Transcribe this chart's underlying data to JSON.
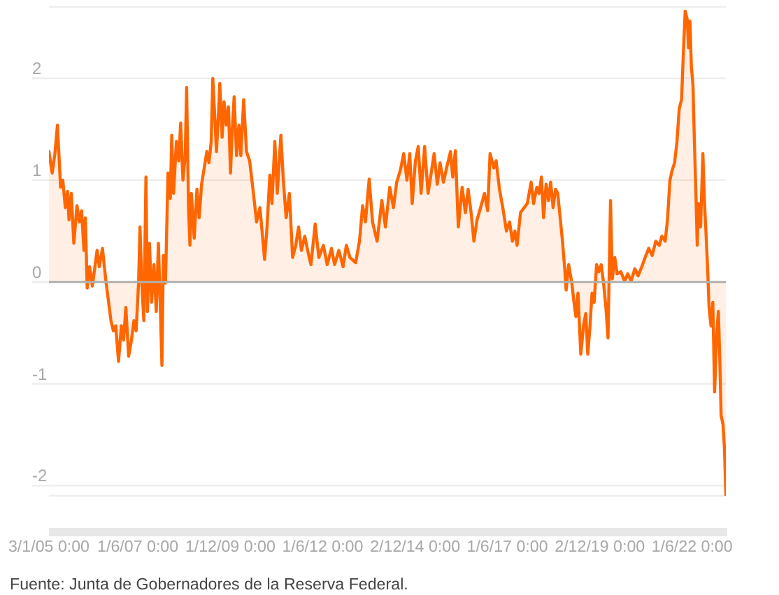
{
  "chart_data": {
    "type": "area",
    "color": "#ff6600",
    "x": [
      "2005-01-03",
      "2005-02-04",
      "2005-03-03",
      "2005-03-28",
      "2005-04-28",
      "2005-05-20",
      "2005-06-14",
      "2005-07-06",
      "2005-07-20",
      "2005-08-12",
      "2005-09-06",
      "2005-10-07",
      "2005-10-31",
      "2005-11-22",
      "2005-12-15",
      "2005-12-29",
      "2006-01-16",
      "2006-02-08",
      "2006-03-08",
      "2006-04-24",
      "2006-05-16",
      "2006-06-16",
      "2006-07-20",
      "2006-09-08",
      "2006-10-02",
      "2006-10-25",
      "2006-11-22",
      "2006-12-20",
      "2007-01-11",
      "2007-02-02",
      "2007-03-02",
      "2007-03-30",
      "2007-04-23",
      "2007-05-15",
      "2007-06-08",
      "2007-06-22",
      "2007-07-10",
      "2007-07-30",
      "2007-08-20",
      "2007-09-04",
      "2007-09-24",
      "2007-10-15",
      "2007-11-07",
      "2007-11-30",
      "2007-12-21",
      "2008-01-11",
      "2008-01-25",
      "2008-02-08",
      "2008-02-29",
      "2008-03-25",
      "2008-04-17",
      "2008-05-01",
      "2008-05-19",
      "2008-06-16",
      "2008-07-09",
      "2008-07-28",
      "2008-08-20",
      "2008-09-11",
      "2008-09-25",
      "2008-10-14",
      "2008-10-28",
      "2008-11-11",
      "2008-12-09",
      "2009-01-05",
      "2009-01-27",
      "2009-02-20",
      "2009-04-13",
      "2009-05-04",
      "2009-05-26",
      "2009-06-11",
      "2009-06-29",
      "2009-07-17",
      "2009-08-05",
      "2009-08-19",
      "2009-09-11",
      "2009-09-30",
      "2009-10-23",
      "2009-11-13",
      "2009-12-03",
      "2009-12-21",
      "2010-01-08",
      "2010-02-01",
      "2010-02-24",
      "2010-03-15",
      "2010-04-12",
      "2010-05-10",
      "2010-06-10",
      "2010-07-13",
      "2010-08-18",
      "2010-09-20",
      "2010-11-05",
      "2010-11-29",
      "2010-12-27",
      "2011-01-17",
      "2011-02-14",
      "2011-03-10",
      "2011-04-15",
      "2011-05-09",
      "2011-06-06",
      "2011-07-08",
      "2011-08-09",
      "2011-09-09",
      "2011-10-07",
      "2011-11-04",
      "2011-12-07",
      "2012-01-09",
      "2012-02-06",
      "2012-03-19",
      "2012-04-24",
      "2012-06-08",
      "2012-07-16",
      "2012-08-27",
      "2012-09-27",
      "2012-11-08",
      "2012-12-20",
      "2013-01-21",
      "2013-02-26",
      "2013-04-23",
      "2013-05-31",
      "2013-07-01",
      "2013-07-29",
      "2013-09-04",
      "2013-10-07",
      "2013-11-21",
      "2014-01-07",
      "2014-02-12",
      "2014-03-26",
      "2014-05-02",
      "2014-06-03",
      "2014-07-10",
      "2014-08-11",
      "2014-09-12",
      "2014-10-10",
      "2014-11-03",
      "2014-12-05",
      "2015-01-02",
      "2015-01-30",
      "2015-03-06",
      "2015-04-09",
      "2015-05-07",
      "2015-06-08",
      "2015-07-09",
      "2015-08-06",
      "2015-09-08",
      "2015-10-09",
      "2015-11-17",
      "2015-12-09",
      "2016-01-04",
      "2016-02-02",
      "2016-03-11",
      "2016-04-12",
      "2016-05-09",
      "2016-06-10",
      "2016-07-05",
      "2016-08-05",
      "2016-09-09",
      "2016-10-18",
      "2016-11-18",
      "2016-12-12",
      "2017-01-19",
      "2017-02-10",
      "2017-03-15",
      "2017-04-17",
      "2017-05-23",
      "2017-06-23",
      "2017-07-21",
      "2017-08-14",
      "2017-09-05",
      "2017-10-09",
      "2017-11-14",
      "2017-12-15",
      "2018-01-22",
      "2018-02-15",
      "2018-03-19",
      "2018-04-11",
      "2018-05-04",
      "2018-05-25",
      "2018-06-19",
      "2018-07-13",
      "2018-08-03",
      "2018-08-27",
      "2018-09-20",
      "2018-10-12",
      "2018-11-05",
      "2018-11-28",
      "2018-12-20",
      "2019-01-03",
      "2019-01-28",
      "2019-02-28",
      "2019-03-22",
      "2019-04-09",
      "2019-04-30",
      "2019-05-28",
      "2019-06-24",
      "2019-07-16",
      "2019-08-05",
      "2019-08-27",
      "2019-09-16",
      "2019-10-07",
      "2019-10-31",
      "2019-11-22",
      "2019-12-16",
      "2020-01-08",
      "2020-01-31",
      "2020-02-21",
      "2020-03-17",
      "2020-04-03",
      "2020-04-28",
      "2020-05-21",
      "2020-06-26",
      "2020-08-03",
      "2020-09-03",
      "2020-10-07",
      "2020-11-12",
      "2020-12-15",
      "2021-01-20",
      "2021-02-22",
      "2021-03-29",
      "2021-05-03",
      "2021-06-07",
      "2021-07-12",
      "2021-08-06",
      "2021-09-08",
      "2021-10-01",
      "2021-10-25",
      "2021-11-17",
      "2021-12-10",
      "2022-01-03",
      "2022-01-25",
      "2022-02-17",
      "2022-03-07",
      "2022-03-25",
      "2022-04-14",
      "2022-04-27",
      "2022-05-11",
      "2022-05-25",
      "2022-06-10",
      "2022-06-24",
      "2022-07-08",
      "2022-07-22",
      "2022-08-05",
      "2022-08-24",
      "2022-09-16",
      "2022-09-30",
      "2022-10-14",
      "2022-11-02",
      "2022-11-16",
      "2022-12-05",
      "2022-12-23",
      "2023-01-10",
      "2023-01-30",
      "2023-02-16",
      "2023-03-02",
      "2023-03-15",
      "2023-04-03",
      "2023-04-17",
      "2023-05-01"
    ],
    "values": [
      1.28,
      1.07,
      1.26,
      1.54,
      0.93,
      1.0,
      0.73,
      0.89,
      0.61,
      0.87,
      0.38,
      0.75,
      0.59,
      0.7,
      0.31,
      0.63,
      -0.06,
      0.15,
      -0.04,
      0.31,
      0.15,
      0.33,
      0.01,
      -0.38,
      -0.48,
      -0.43,
      -0.78,
      -0.43,
      -0.57,
      -0.25,
      -0.73,
      -0.57,
      -0.38,
      -0.48,
      -0.01,
      0.54,
      -0.01,
      -0.38,
      1.03,
      -0.29,
      0.38,
      -0.2,
      0.17,
      -0.29,
      0.38,
      -0.31,
      -0.82,
      0.26,
      -0.01,
      1.07,
      0.82,
      1.44,
      0.87,
      1.38,
      1.19,
      1.56,
      1.0,
      1.24,
      1.91,
      0.73,
      0.36,
      0.87,
      0.43,
      0.91,
      0.63,
      0.96,
      1.28,
      1.17,
      1.38,
      2.0,
      1.65,
      1.28,
      1.63,
      1.95,
      1.42,
      1.77,
      1.54,
      1.72,
      1.07,
      1.51,
      1.82,
      1.24,
      1.54,
      1.24,
      1.79,
      1.28,
      1.19,
      0.91,
      0.59,
      0.73,
      0.22,
      0.54,
      1.05,
      0.77,
      1.38,
      0.87,
      1.44,
      1.0,
      0.63,
      0.87,
      0.24,
      0.36,
      0.54,
      0.31,
      0.45,
      0.29,
      0.17,
      0.57,
      0.24,
      0.36,
      0.17,
      0.33,
      0.17,
      0.31,
      0.15,
      0.36,
      0.24,
      0.19,
      0.4,
      0.75,
      0.59,
      1.01,
      0.59,
      0.4,
      0.8,
      0.54,
      0.93,
      0.73,
      0.98,
      1.1,
      1.26,
      1.0,
      1.26,
      0.77,
      1.19,
      1.33,
      0.87,
      1.33,
      0.87,
      1.05,
      1.26,
      0.96,
      1.17,
      0.98,
      1.12,
      1.28,
      1.03,
      1.29,
      0.54,
      0.93,
      0.68,
      0.91,
      0.66,
      0.4,
      0.61,
      0.73,
      0.87,
      0.7,
      1.26,
      1.12,
      1.19,
      0.91,
      0.73,
      0.5,
      0.59,
      0.4,
      0.5,
      0.36,
      0.68,
      0.73,
      0.77,
      0.98,
      0.77,
      0.93,
      0.87,
      1.03,
      0.63,
      0.96,
      0.8,
      0.98,
      0.73,
      0.91,
      0.87,
      0.63,
      0.4,
      0.13,
      -0.08,
      0.17,
      -0.01,
      -0.2,
      -0.34,
      -0.11,
      -0.71,
      -0.43,
      -0.31,
      -0.71,
      -0.43,
      -0.11,
      -0.2,
      0.17,
      0.1,
      0.17,
      -0.01,
      -0.25,
      -0.55,
      0.8,
      0.03,
      0.24,
      0.08,
      0.1,
      0.01,
      0.08,
      0.01,
      0.13,
      0.06,
      0.15,
      0.24,
      0.33,
      0.26,
      0.4,
      0.36,
      0.45,
      0.4,
      0.61,
      1.0,
      1.1,
      1.17,
      1.38,
      1.7,
      1.79,
      2.25,
      2.66,
      2.58,
      2.3,
      2.56,
      2.12,
      1.93,
      1.38,
      0.91,
      0.36,
      0.77,
      0.54,
      1.26,
      0.82,
      0.54,
      0.13,
      -0.25,
      -0.43,
      -0.2,
      -1.08,
      -0.52,
      -0.29,
      -0.75,
      -1.31,
      -1.4,
      -1.63,
      -2.09
    ],
    "xlim": [
      "2005-01-03",
      "2023-05-01"
    ],
    "xticks": [
      {
        "value": "2005-01-03",
        "label": "3/1/05 0:00"
      },
      {
        "value": "2007-06-01",
        "label": "1/6/07 0:00"
      },
      {
        "value": "2009-12-01",
        "label": "1/12/09 0:00"
      },
      {
        "value": "2012-06-01",
        "label": "1/6/12 0:00"
      },
      {
        "value": "2014-12-02",
        "label": "2/12/14 0:00"
      },
      {
        "value": "2017-06-01",
        "label": "1/6/17 0:00"
      },
      {
        "value": "2019-12-02",
        "label": "2/12/19 0:00"
      },
      {
        "value": "2022-06-01",
        "label": "1/6/22 0:00"
      }
    ],
    "ylim": [
      -2.1,
      2.7
    ],
    "yticks": [
      -2,
      -1,
      0,
      1,
      2
    ],
    "grid": "y",
    "ref_lines": [
      {
        "axis": "y",
        "value": 0,
        "color": "#b0b0b0"
      }
    ],
    "annotations": [
      "Fuente: Junta de Gobernadores de la Reserva Federal."
    ]
  }
}
